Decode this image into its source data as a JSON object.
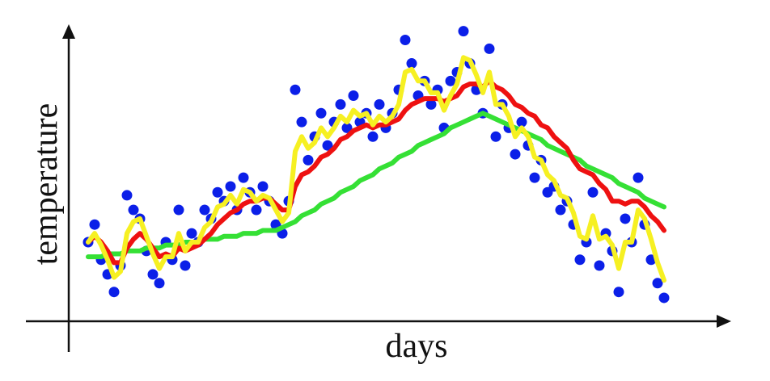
{
  "chart_data": {
    "type": "line",
    "xlabel": "days",
    "ylabel": "temperature",
    "xlim": [
      0,
      100
    ],
    "ylim": [
      0,
      100
    ],
    "x": [
      3,
      4,
      5,
      6,
      7,
      8,
      9,
      10,
      11,
      12,
      13,
      14,
      15,
      16,
      17,
      18,
      19,
      20,
      21,
      22,
      23,
      24,
      25,
      26,
      27,
      28,
      29,
      30,
      31,
      32,
      33,
      34,
      35,
      36,
      37,
      38,
      39,
      40,
      41,
      42,
      43,
      44,
      45,
      46,
      47,
      48,
      49,
      50,
      51,
      52,
      53,
      54,
      55,
      56,
      57,
      58,
      59,
      60,
      61,
      62,
      63,
      64,
      65,
      66,
      67,
      68,
      69,
      70,
      71,
      72,
      73,
      74,
      75,
      76,
      77,
      78,
      79,
      80,
      81,
      82,
      83,
      84,
      85,
      86,
      87,
      88,
      89,
      90,
      91,
      92
    ],
    "series": [
      {
        "type": "scatter",
        "color": "#0b1fe8",
        "values": [
          27,
          33,
          21,
          16,
          10,
          19,
          43,
          38,
          35,
          24,
          16,
          13,
          27,
          21,
          38,
          19,
          30,
          27,
          38,
          35,
          44,
          41,
          46,
          38,
          49,
          44,
          38,
          46,
          41,
          33,
          30,
          41,
          79,
          68,
          55,
          63,
          71,
          60,
          68,
          74,
          66,
          77,
          68,
          71,
          63,
          74,
          66,
          71,
          79,
          96,
          88,
          77,
          82,
          74,
          79,
          66,
          82,
          85,
          99,
          88,
          79,
          71,
          93,
          63,
          74,
          66,
          57,
          68,
          60,
          49,
          55,
          44,
          46,
          38,
          41,
          33,
          21,
          27,
          44,
          19,
          30,
          24,
          10,
          35,
          27,
          49,
          33,
          21,
          13,
          8
        ]
      },
      {
        "type": "line",
        "color": "#35e035",
        "values": [
          22,
          22,
          22,
          23,
          23,
          23,
          24,
          24,
          24,
          25,
          25,
          25,
          26,
          26,
          26,
          27,
          27,
          27,
          28,
          28,
          28,
          29,
          29,
          29,
          30,
          30,
          30,
          31,
          31,
          31,
          32,
          33,
          34,
          36,
          37,
          38,
          40,
          41,
          42,
          44,
          45,
          46,
          48,
          49,
          50,
          52,
          53,
          54,
          56,
          57,
          58,
          60,
          61,
          62,
          63,
          64,
          66,
          67,
          68,
          69,
          70,
          71,
          70,
          69,
          68,
          67,
          66,
          65,
          64,
          63,
          62,
          60,
          59,
          58,
          57,
          56,
          55,
          53,
          52,
          51,
          50,
          49,
          47,
          46,
          45,
          44,
          42,
          41,
          40,
          39
        ]
      },
      {
        "type": "line",
        "color": "#ee1111",
        "values": [
          27,
          29,
          27,
          24,
          20,
          20,
          25,
          28,
          30,
          28,
          25,
          22,
          23,
          22,
          25,
          24,
          25,
          26,
          28,
          30,
          33,
          35,
          37,
          38,
          40,
          41,
          41,
          42,
          42,
          40,
          38,
          38,
          46,
          50,
          51,
          53,
          56,
          57,
          59,
          62,
          63,
          65,
          66,
          67,
          66,
          67,
          67,
          68,
          69,
          72,
          74,
          75,
          76,
          76,
          76,
          75,
          76,
          77,
          80,
          81,
          81,
          80,
          82,
          80,
          79,
          77,
          74,
          73,
          71,
          70,
          67,
          66,
          63,
          61,
          59,
          55,
          52,
          51,
          50,
          47,
          45,
          41,
          41,
          40,
          41,
          41,
          39,
          36,
          34,
          31
        ]
      },
      {
        "type": "line",
        "color": "#f6f022",
        "values": [
          27,
          30,
          26,
          21,
          15,
          17,
          30,
          34,
          35,
          29,
          23,
          18,
          22,
          22,
          30,
          24,
          27,
          27,
          32,
          34,
          39,
          40,
          43,
          40,
          45,
          44,
          41,
          43,
          42,
          38,
          34,
          37,
          58,
          63,
          59,
          61,
          66,
          63,
          66,
          70,
          68,
          72,
          70,
          71,
          67,
          70,
          68,
          70,
          74,
          85,
          86,
          82,
          82,
          78,
          78,
          72,
          77,
          81,
          90,
          89,
          84,
          78,
          85,
          74,
          74,
          70,
          63,
          66,
          63,
          56,
          55,
          50,
          48,
          43,
          42,
          37,
          29,
          28,
          36,
          28,
          29,
          26,
          18,
          27,
          27,
          38,
          35,
          28,
          20,
          14
        ]
      }
    ]
  }
}
